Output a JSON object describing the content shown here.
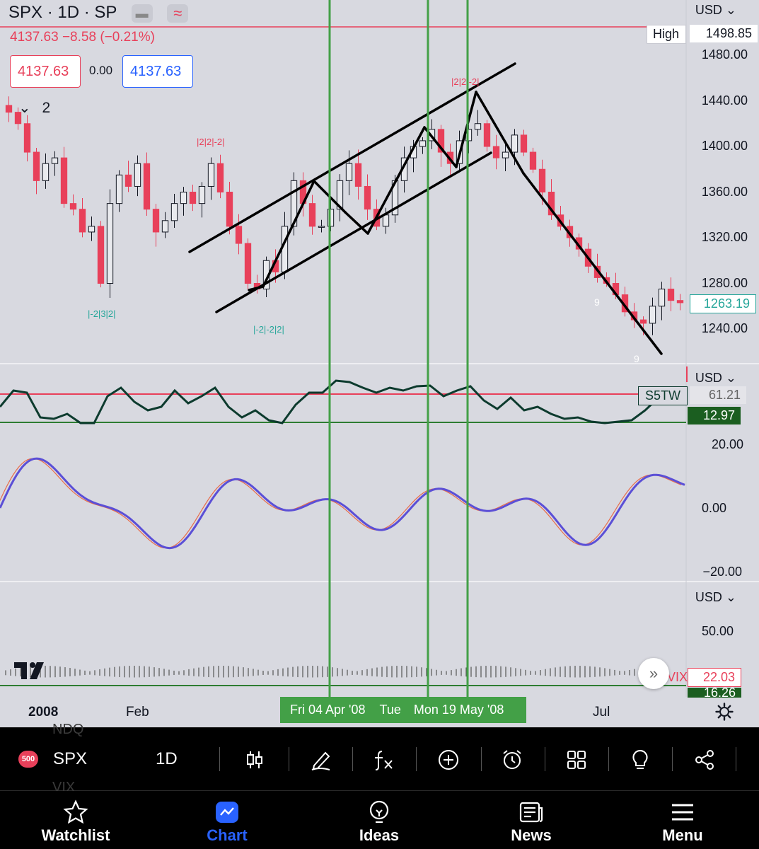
{
  "header": {
    "title": "SPX · 1D · SP",
    "change": "4137.63 −8.58 (−0.21%)",
    "bid": "4137.63",
    "spread": "0.00",
    "ask": "4137.63",
    "legend_count": "2"
  },
  "price_axis": {
    "currency": "USD",
    "labels": [
      "1480.00",
      "1440.00",
      "1400.00",
      "1360.00",
      "1320.00",
      "1280.00",
      "1240.00"
    ],
    "high_label": "High",
    "high_value": "1498.85",
    "last_value": "1263.19"
  },
  "annotations": {
    "pattern_labels": [
      "|2|2|-2|",
      "|-2|3|2|",
      "|-2|-2|2|",
      "|2|2|-2|"
    ],
    "count_labels": [
      "9",
      "9"
    ]
  },
  "pane2": {
    "currency": "USD",
    "symbol_tag": "S5TW",
    "value1": "61.21",
    "value2": "12.97"
  },
  "pane3": {
    "labels": [
      "20.00",
      "0.00",
      "−20.00"
    ]
  },
  "pane4": {
    "currency": "USD",
    "label": "50.00",
    "tag": "VIX",
    "value1": "22.03",
    "value2": "16.26"
  },
  "time_axis": {
    "labels": [
      "2008",
      "Feb",
      "Jul"
    ],
    "crosshair_dates": [
      "Fri 04 Apr '08",
      "Tue",
      "Mon 19 May '08"
    ]
  },
  "toolbar": {
    "badge": "500",
    "symbol": "SPX",
    "interval": "1D",
    "ghost_top": "NDQ",
    "ghost_bottom": "VIX"
  },
  "nav": {
    "items": [
      {
        "label": "Watchlist",
        "icon": "star-icon"
      },
      {
        "label": "Chart",
        "icon": "chart-icon"
      },
      {
        "label": "Ideas",
        "icon": "lightbulb-icon"
      },
      {
        "label": "News",
        "icon": "news-icon"
      },
      {
        "label": "Menu",
        "icon": "hamburger-icon"
      }
    ],
    "active": "Chart"
  },
  "colors": {
    "up": "#131722",
    "down": "#e8405a",
    "teal": "#26a69a",
    "vertical": "#43a047",
    "oscillator": "#5b4fd6",
    "active": "#2962ff",
    "green_line": "#2e7d32",
    "dark_line": "#0d3b2e"
  },
  "chart_data": {
    "type": "candlestick",
    "symbol": "SPX",
    "interval": "1D",
    "y_range": [
      1220,
      1500
    ],
    "y_ticks": [
      1480,
      1440,
      1400,
      1360,
      1320,
      1280,
      1240
    ],
    "x_ticks": [
      "2008",
      "Feb",
      "Jul"
    ],
    "close_path": [
      1430,
      1420,
      1395,
      1370,
      1385,
      1390,
      1350,
      1345,
      1325,
      1330,
      1280,
      1350,
      1375,
      1365,
      1385,
      1345,
      1325,
      1335,
      1350,
      1360,
      1350,
      1365,
      1385,
      1360,
      1330,
      1315,
      1280,
      1275,
      1300,
      1290,
      1330,
      1370,
      1350,
      1330,
      1330,
      1345,
      1370,
      1385,
      1365,
      1345,
      1330,
      1340,
      1370,
      1390,
      1400,
      1405,
      1415,
      1395,
      1385,
      1405,
      1415,
      1420,
      1400,
      1390,
      1395,
      1410,
      1395,
      1380,
      1360,
      1340,
      1330,
      1320,
      1310,
      1295,
      1285,
      1280,
      1270,
      1255,
      1248,
      1245,
      1260,
      1275,
      1265,
      1263
    ],
    "high": 1498.85,
    "last": 1263.19
  }
}
